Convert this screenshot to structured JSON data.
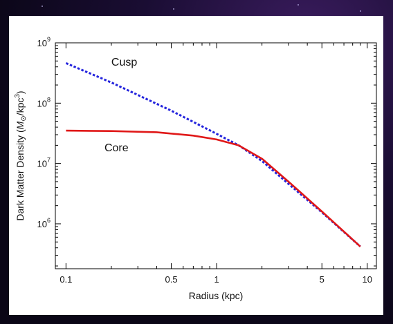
{
  "chart_data": {
    "type": "line",
    "xlabel": "Radius (kpc)",
    "ylabel": {
      "prefix": "Dark Matter Density (",
      "unit_symbol": "M",
      "unit_sub": "⊙",
      "unit_rest": "/kpc",
      "unit_exp": "3",
      "suffix": ")"
    },
    "x_scale": "log",
    "y_scale": "log",
    "xlim": [
      0.085,
      11.5
    ],
    "ylim": [
      180000,
      1000000000
    ],
    "x_ticks": [
      {
        "value": 0.1,
        "label": "0.1"
      },
      {
        "value": 0.5,
        "label": "0.5"
      },
      {
        "value": 1,
        "label": "1"
      },
      {
        "value": 5,
        "label": "5"
      },
      {
        "value": 10,
        "label": "10"
      }
    ],
    "y_ticks": [
      {
        "value": 1000000,
        "base": "10",
        "exp": "6"
      },
      {
        "value": 10000000,
        "base": "10",
        "exp": "7"
      },
      {
        "value": 100000000,
        "base": "10",
        "exp": "8"
      },
      {
        "value": 1000000000,
        "base": "10",
        "exp": "9"
      }
    ],
    "grid": false,
    "series": [
      {
        "name": "Cusp",
        "color": "#2424dd",
        "style": "dashed",
        "x": [
          0.1,
          0.2,
          0.5,
          1.0,
          1.4,
          2.0,
          3.0,
          5.0,
          9.0
        ],
        "y": [
          460000000,
          220000000,
          75000000,
          31000000,
          20000000,
          11000000,
          4600000,
          1550000,
          420000
        ]
      },
      {
        "name": "Core",
        "color": "#e01818",
        "style": "solid",
        "x": [
          0.1,
          0.2,
          0.4,
          0.7,
          1.0,
          1.4,
          2.0,
          3.0,
          5.0,
          9.0
        ],
        "y": [
          35000000,
          34500000,
          33000000,
          29000000,
          25000000,
          20000000,
          12000000,
          5000000,
          1600000,
          420000
        ]
      }
    ],
    "annotations": [
      {
        "text": "Cusp",
        "x": 0.2,
        "y": 420000000
      },
      {
        "text": "Core",
        "x": 0.18,
        "y": 16000000
      }
    ]
  }
}
